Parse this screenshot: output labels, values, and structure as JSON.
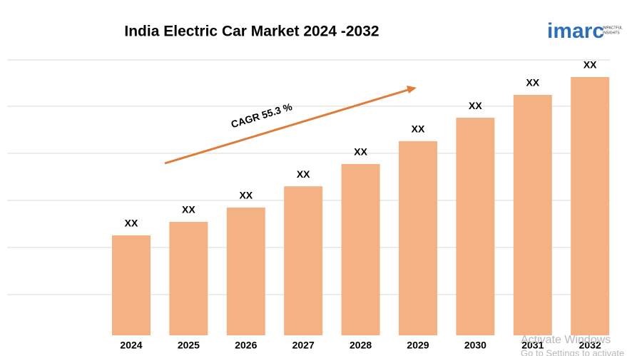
{
  "chart_data": {
    "type": "bar",
    "title": "India Electric Car Market 2024 -2032",
    "categories": [
      "2024",
      "2025",
      "2026",
      "2027",
      "2028",
      "2029",
      "2030",
      "2031",
      "2032"
    ],
    "values": [
      36.3,
      41.2,
      46.4,
      54.1,
      62.2,
      70.5,
      79.0,
      87.3,
      93.8
    ],
    "value_labels": [
      "XX",
      "XX",
      "XX",
      "XX",
      "XX",
      "XX",
      "XX",
      "XX",
      "XX"
    ],
    "color": "#f4b183",
    "ylim": [
      0,
      100
    ],
    "yticks": [
      14.8,
      31.9,
      49,
      66.1,
      83.2,
      100
    ],
    "grid": true,
    "show_tick_labels": false,
    "annotation": {
      "text": "CAGR 55.3 %",
      "color": "#e07b39"
    },
    "logo": {
      "brand": "imarc",
      "tagline1": "IMPACTFUL",
      "tagline2": "INSIGHTS"
    },
    "watermark": {
      "line1": "Activate Windows",
      "line2": "Go to Settings to activate Windows."
    }
  }
}
